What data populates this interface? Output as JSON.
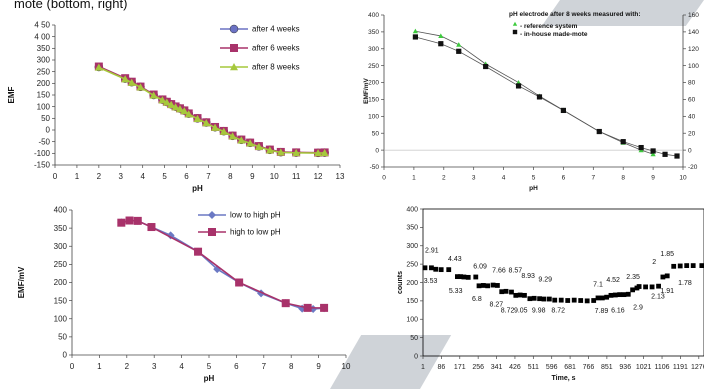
{
  "caption": "mote (bottom, right)",
  "chart_data": [
    {
      "type": "line",
      "id": "tl",
      "title": "",
      "xlabel": "pH",
      "ylabel": "EMF",
      "xlim": [
        0,
        13
      ],
      "ylim": [
        -150,
        450
      ],
      "xticks": [
        0,
        1,
        2,
        3,
        4,
        5,
        6,
        7,
        8,
        9,
        10,
        11,
        12,
        13
      ],
      "yticks": [
        -150,
        -100,
        -50,
        0,
        50,
        100,
        150,
        200,
        250,
        300,
        350,
        400,
        450
      ],
      "ytick_labels": [
        "-150",
        "-100",
        "-50",
        "0",
        "50",
        "100",
        "150",
        "200",
        "250",
        "300",
        "350",
        "4 00",
        "4 50"
      ],
      "legend": "top-right",
      "grid": false,
      "series": [
        {
          "name": "after 4 weeks",
          "color": "#6b72c4",
          "marker": "circle",
          "x": [
            2.0,
            3.2,
            3.5,
            3.9,
            4.5,
            4.9,
            5.1,
            5.3,
            5.5,
            5.7,
            5.9,
            6.1,
            6.5,
            6.9,
            7.3,
            7.7,
            8.1,
            8.5,
            8.9,
            9.3,
            9.8,
            10.3,
            11.0,
            12.0,
            12.3
          ],
          "y": [
            270,
            220,
            205,
            185,
            150,
            130,
            120,
            110,
            100,
            92,
            83,
            70,
            50,
            32,
            12,
            -5,
            -25,
            -42,
            -55,
            -70,
            -85,
            -95,
            -97,
            -98,
            -97
          ]
        },
        {
          "name": "after 6 weeks",
          "color": "#a8326a",
          "marker": "square",
          "x": [
            2.0,
            3.2,
            3.5,
            3.9,
            4.5,
            4.9,
            5.1,
            5.3,
            5.5,
            5.7,
            5.9,
            6.1,
            6.5,
            6.9,
            7.3,
            7.7,
            8.1,
            8.5,
            8.9,
            9.3,
            9.8,
            10.3,
            11.0,
            12.0,
            12.3
          ],
          "y": [
            272,
            222,
            207,
            186,
            152,
            131,
            121,
            111,
            101,
            93,
            84,
            71,
            51,
            33,
            13,
            -4,
            -24,
            -41,
            -54,
            -69,
            -84,
            -94,
            -96,
            -97,
            -96
          ]
        },
        {
          "name": "after 8 weeks",
          "color": "#a6c83c",
          "marker": "triangle",
          "x": [
            2.0,
            3.2,
            3.5,
            3.9,
            4.5,
            4.9,
            5.1,
            5.3,
            5.5,
            5.7,
            5.9,
            6.1,
            6.5,
            6.9,
            7.3,
            7.7,
            8.1,
            8.5,
            8.9,
            9.3,
            9.8,
            10.3,
            11.0,
            12.0,
            12.3
          ],
          "y": [
            268,
            218,
            203,
            183,
            148,
            128,
            118,
            108,
            98,
            90,
            81,
            68,
            48,
            30,
            10,
            -7,
            -27,
            -44,
            -57,
            -72,
            -87,
            -96,
            -98,
            -99,
            -98
          ]
        }
      ]
    },
    {
      "type": "line",
      "id": "tr",
      "title": "pH electrode after 8 weeks measured with:",
      "xlabel": "pH",
      "ylabel": "EMF/mV",
      "xlim": [
        0,
        10
      ],
      "ylim": [
        -50,
        400
      ],
      "y2lim": [
        -20,
        160
      ],
      "xticks": [
        0,
        1,
        2,
        3,
        4,
        5,
        6,
        7,
        8,
        9,
        10
      ],
      "yticks": [
        -50,
        0,
        50,
        100,
        150,
        200,
        250,
        300,
        350,
        400
      ],
      "y2ticks": [
        -20,
        0,
        20,
        40,
        60,
        80,
        100,
        120,
        140,
        160
      ],
      "legend": "top-right",
      "grid": false,
      "series": [
        {
          "name": "- reference system",
          "color": "#3ecb3e",
          "marker": "triangle",
          "axis": "left",
          "x": [
            1.05,
            1.9,
            2.5,
            3.4,
            4.5,
            5.2,
            6.0,
            7.2,
            8.0,
            8.6,
            9.0
          ],
          "y": [
            352,
            338,
            312,
            255,
            200,
            160,
            118,
            55,
            22,
            0,
            -12
          ]
        },
        {
          "name": "- in-house made-mote",
          "color": "#111111",
          "marker": "square",
          "axis": "right",
          "x": [
            1.05,
            1.9,
            2.5,
            3.4,
            4.5,
            5.2,
            6.0,
            7.2,
            8.0,
            8.6,
            9.0,
            9.4,
            9.8
          ],
          "y": [
            134,
            126,
            117,
            99,
            76,
            63,
            47,
            22,
            10,
            3,
            -1,
            -5,
            -7
          ]
        }
      ]
    },
    {
      "type": "line",
      "id": "bl",
      "title": "",
      "xlabel": "pH",
      "ylabel": "EMF/mV",
      "xlim": [
        0,
        10
      ],
      "ylim": [
        0,
        400
      ],
      "xticks": [
        0,
        1,
        2,
        3,
        4,
        5,
        6,
        7,
        8,
        9,
        10
      ],
      "yticks": [
        0,
        50,
        100,
        150,
        200,
        250,
        300,
        350,
        400
      ],
      "legend": "top-right",
      "grid": false,
      "series": [
        {
          "name": "low to high pH",
          "color": "#6b79c4",
          "marker": "diamond",
          "x": [
            1.8,
            2.1,
            2.4,
            2.9,
            3.6,
            4.6,
            5.3,
            6.1,
            6.9,
            7.8,
            8.4,
            8.8,
            9.2
          ],
          "y": [
            366,
            371,
            370,
            353,
            330,
            285,
            237,
            200,
            170,
            143,
            128,
            127,
            129
          ]
        },
        {
          "name": "high to low pH",
          "color": "#a8326a",
          "marker": "square",
          "x": [
            1.8,
            2.1,
            2.4,
            2.9,
            4.6,
            6.1,
            7.8,
            8.6,
            9.2
          ],
          "y": [
            365,
            371,
            370,
            353,
            285,
            200,
            143,
            130,
            130
          ]
        }
      ]
    },
    {
      "type": "scatter",
      "id": "br",
      "title": "",
      "xlabel": "Time, s",
      "ylabel": "counts",
      "xlim": [
        1,
        1300
      ],
      "ylim": [
        0,
        400
      ],
      "xticks": [
        1,
        86,
        171,
        256,
        341,
        426,
        511,
        596,
        681,
        766,
        851,
        936,
        1021,
        1106,
        1191,
        1276
      ],
      "yticks": [
        0,
        50,
        100,
        150,
        200,
        250,
        300,
        350,
        400
      ],
      "grid": false,
      "series": [
        {
          "name": "",
          "color": "#000000",
          "marker": "square",
          "x": [
            10,
            40,
            60,
            85,
            120,
            160,
            175,
            190,
            210,
            245,
            260,
            280,
            300,
            325,
            345,
            365,
            385,
            410,
            430,
            450,
            470,
            495,
            515,
            540,
            560,
            585,
            610,
            640,
            670,
            700,
            730,
            760,
            790,
            810,
            830,
            850,
            870,
            890,
            910,
            930,
            950,
            970,
            990,
            1000,
            1030,
            1060,
            1090,
            1110,
            1130,
            1160,
            1190,
            1220,
            1250,
            1290
          ],
          "y": [
            240,
            240,
            236,
            235,
            235,
            216,
            216,
            215,
            214,
            215,
            191,
            192,
            191,
            193,
            192,
            175,
            176,
            174,
            165,
            166,
            165,
            156,
            157,
            156,
            155,
            155,
            152,
            152,
            151,
            152,
            151,
            150,
            151,
            158,
            158,
            160,
            165,
            166,
            167,
            167,
            168,
            180,
            185,
            189,
            188,
            188,
            190,
            215,
            218,
            244,
            245,
            246,
            246,
            246
          ]
        }
      ],
      "annotations": [
        {
          "text": "2.91",
          "x": 42,
          "y": 282
        },
        {
          "text": "3.53",
          "x": 36,
          "y": 198
        },
        {
          "text": "4.43",
          "x": 148,
          "y": 258
        },
        {
          "text": "5.33",
          "x": 152,
          "y": 172
        },
        {
          "text": "6.09",
          "x": 265,
          "y": 238
        },
        {
          "text": "6.8",
          "x": 250,
          "y": 150
        },
        {
          "text": "7.66",
          "x": 352,
          "y": 227
        },
        {
          "text": "8.57",
          "x": 428,
          "y": 227
        },
        {
          "text": "8.27",
          "x": 340,
          "y": 135
        },
        {
          "text": "8.72",
          "x": 392,
          "y": 119
        },
        {
          "text": "8.93",
          "x": 487,
          "y": 212
        },
        {
          "text": "9.05",
          "x": 453,
          "y": 119
        },
        {
          "text": "9.29",
          "x": 566,
          "y": 203
        },
        {
          "text": "9.98",
          "x": 536,
          "y": 119
        },
        {
          "text": "8.72",
          "x": 626,
          "y": 119
        },
        {
          "text": "7.1",
          "x": 810,
          "y": 189
        },
        {
          "text": "4.52",
          "x": 880,
          "y": 202
        },
        {
          "text": "7.89",
          "x": 826,
          "y": 117
        },
        {
          "text": "6.16",
          "x": 902,
          "y": 119
        },
        {
          "text": "2.35",
          "x": 972,
          "y": 210
        },
        {
          "text": "2.9",
          "x": 995,
          "y": 126
        },
        {
          "text": "2",
          "x": 1070,
          "y": 251
        },
        {
          "text": "1.85",
          "x": 1130,
          "y": 272
        },
        {
          "text": "2.13",
          "x": 1087,
          "y": 156
        },
        {
          "text": "1.91",
          "x": 1130,
          "y": 171
        },
        {
          "text": "1.78",
          "x": 1212,
          "y": 193
        }
      ]
    }
  ]
}
